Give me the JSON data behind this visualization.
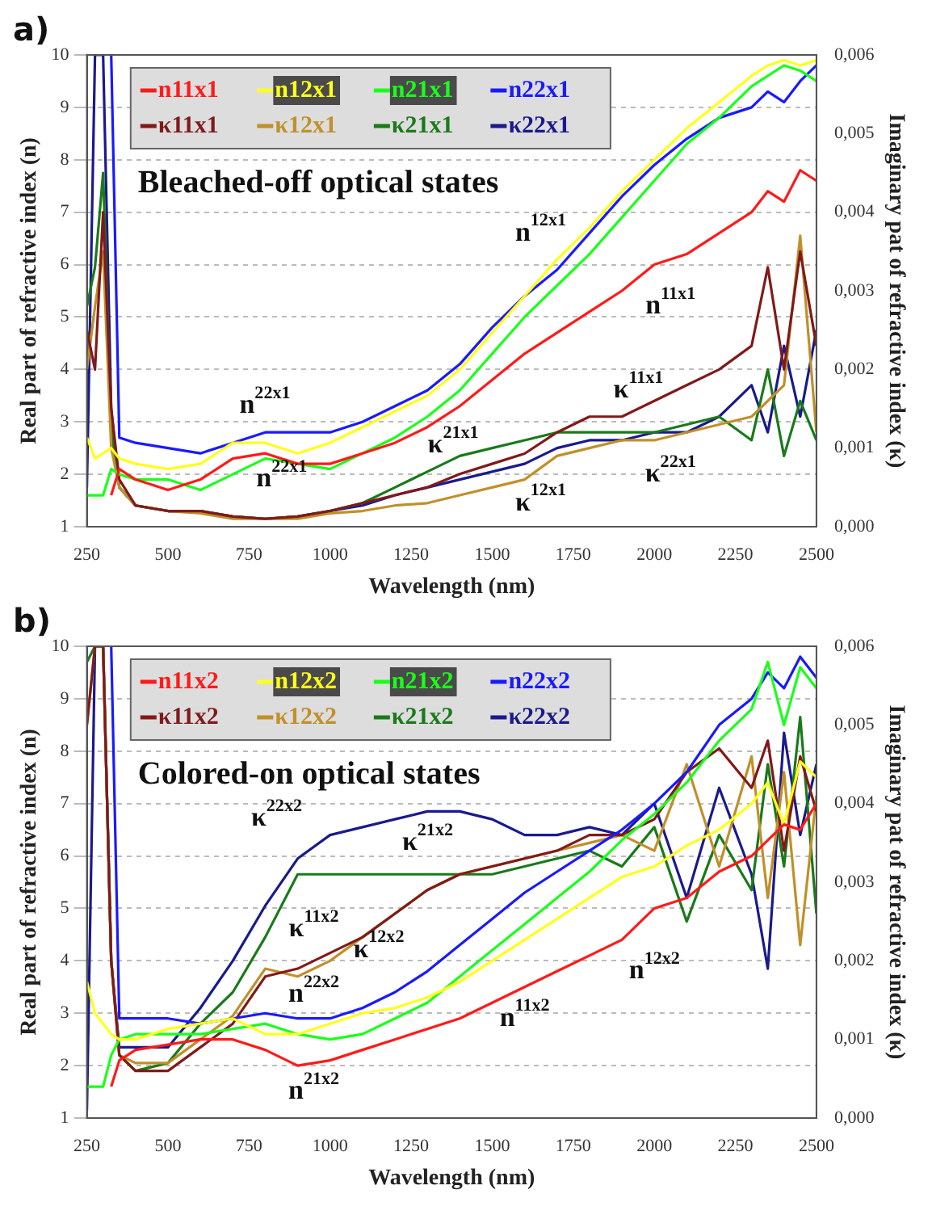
{
  "chart_data": [
    {
      "type": "line",
      "title": "a)",
      "xlabel": "Wavelength (nm)",
      "ylabel": "Real part of refractive index (n)",
      "y2label": "Imaginary pat of refractive index (κ)",
      "legend": "top left",
      "grid": "y",
      "marker": "none",
      "line_style": "solid",
      "xlim": [
        250,
        2500
      ],
      "xticks": [
        250,
        500,
        750,
        1000,
        1250,
        1500,
        1750,
        2000,
        2250,
        2500
      ],
      "ylim": [
        1,
        10
      ],
      "yticks": [
        1,
        2,
        3,
        4,
        5,
        6,
        7,
        8,
        9,
        10
      ],
      "y2lim": [
        0,
        0.006
      ],
      "y2ticks": [
        {
          "value": 0,
          "label": "0,000"
        },
        {
          "value": 0.001,
          "label": "0,001"
        },
        {
          "value": 0.002,
          "label": "0,002"
        },
        {
          "value": 0.003,
          "label": "0,003"
        },
        {
          "value": 0.004,
          "label": "0,004"
        },
        {
          "value": 0.005,
          "label": "0,005"
        },
        {
          "value": 0.006,
          "label": "0,006"
        }
      ],
      "x": [
        250,
        275,
        300,
        325,
        350,
        400,
        500,
        600,
        700,
        800,
        900,
        1000,
        1100,
        1200,
        1300,
        1400,
        1500,
        1600,
        1700,
        1800,
        1900,
        2000,
        2100,
        2200,
        2300,
        2350,
        2400,
        2450,
        2500
      ],
      "series": [
        {
          "name": "n11x1",
          "color": "#ff1a1a",
          "values": [
            null,
            null,
            null,
            1.6,
            2.1,
            1.9,
            1.7,
            1.9,
            2.3,
            2.4,
            2.2,
            2.2,
            2.4,
            2.6,
            2.9,
            3.3,
            3.8,
            4.3,
            4.7,
            5.1,
            5.5,
            6.0,
            6.2,
            6.6,
            7.0,
            7.4,
            7.2,
            7.8,
            7.6
          ]
        },
        {
          "name": "n12x1",
          "color": "#ffff1a",
          "values": [
            2.7,
            2.3,
            2.4,
            2.5,
            2.3,
            2.2,
            2.1,
            2.2,
            2.6,
            2.6,
            2.4,
            2.6,
            2.9,
            3.2,
            3.5,
            4.0,
            4.7,
            5.4,
            6.1,
            6.7,
            7.4,
            8.0,
            8.6,
            9.1,
            9.6,
            9.8,
            9.9,
            9.8,
            9.9
          ]
        },
        {
          "name": "n21x1",
          "color": "#1aff1a",
          "values": [
            1.6,
            1.6,
            1.6,
            2.1,
            2.0,
            1.9,
            1.9,
            1.7,
            2.0,
            2.3,
            2.2,
            2.1,
            2.4,
            2.7,
            3.1,
            3.6,
            4.3,
            5.0,
            5.6,
            6.2,
            6.9,
            7.6,
            8.3,
            8.8,
            9.4,
            9.6,
            9.8,
            9.7,
            9.5
          ]
        },
        {
          "name": "n22x1",
          "color": "#1a1aff",
          "values": [
            null,
            null,
            null,
            10,
            2.7,
            2.6,
            2.5,
            2.4,
            2.6,
            2.8,
            2.8,
            2.8,
            3.0,
            3.3,
            3.6,
            4.1,
            4.8,
            5.4,
            5.9,
            6.6,
            7.3,
            7.9,
            8.4,
            8.8,
            9.0,
            9.3,
            9.1,
            9.5,
            9.8
          ]
        },
        {
          "name": "κ11x1",
          "color": "#801a1a",
          "axis": "y2",
          "values": [
            0.0025,
            0.002,
            0.004,
            0.0015,
            0.0006,
            0.00027,
            0.0002,
            0.0002,
            0.00013,
            0.0001,
            0.00013,
            0.0002,
            0.0003,
            0.0004,
            0.0005,
            0.00067,
            0.0008,
            0.00093,
            0.0012,
            0.0014,
            0.0014,
            0.0016,
            0.0018,
            0.002,
            0.0023,
            0.0033,
            0.002,
            0.0035,
            0.0023
          ]
        },
        {
          "name": "κ12x1",
          "color": "#c0902a",
          "axis": "y2",
          "values": [
            0.002,
            0.0028,
            0.0035,
            0.001,
            0.0005,
            0.00027,
            0.0002,
            0.00017,
            0.0001,
            0.0001,
            0.0001,
            0.00017,
            0.0002,
            0.00027,
            0.0003,
            0.0004,
            0.0005,
            0.0006,
            0.0009,
            0.001,
            0.0011,
            0.0011,
            0.0012,
            0.0013,
            0.0014,
            0.0016,
            0.0018,
            0.0037,
            0.0012
          ]
        },
        {
          "name": "κ21x1",
          "color": "#1a7a1a",
          "axis": "y2",
          "values": [
            0.0028,
            0.0033,
            0.0045,
            0.0012,
            0.0005,
            0.00027,
            0.0002,
            0.0002,
            0.00013,
            0.0001,
            0.00013,
            0.0002,
            0.0003,
            0.0005,
            0.0007,
            0.0009,
            0.001,
            0.0011,
            0.0012,
            0.0012,
            0.0012,
            0.0012,
            0.0013,
            0.0014,
            0.0011,
            0.002,
            0.0009,
            0.0016,
            0.0011
          ]
        },
        {
          "name": "κ22x1",
          "color": "#1a1a8c",
          "axis": "y2",
          "values": [
            0.0005,
            0.006,
            0.006,
            0.0015,
            0.0005,
            0.00027,
            0.0002,
            0.0002,
            0.00013,
            0.0001,
            0.00013,
            0.0002,
            0.00027,
            0.0004,
            0.0005,
            0.0006,
            0.0007,
            0.0008,
            0.001,
            0.0011,
            0.0011,
            0.0012,
            0.0012,
            0.0014,
            0.0018,
            0.0012,
            0.0023,
            0.0014,
            0.0025
          ]
        }
      ],
      "annotations": [
        "Bleached-off optical states",
        "n$^{12x1}$",
        "n$^{11x1}$",
        "n$^{22x1}$",
        "n$^{22x1}$",
        "κ$^{11x1}$",
        "κ$^{21x1}$",
        "κ$^{12x1}$",
        "κ$^{22x1}$"
      ]
    },
    {
      "type": "line",
      "title": "b)",
      "xlabel": "Wavelength (nm)",
      "ylabel": "Real part of refractive index (n)",
      "y2label": "Imaginary pat of refractive index (κ)",
      "legend": "top left",
      "grid": "y",
      "marker": "none",
      "line_style": "solid",
      "xlim": [
        250,
        2500
      ],
      "xticks": [
        250,
        500,
        750,
        1000,
        1250,
        1500,
        1750,
        2000,
        2250,
        2500
      ],
      "ylim": [
        1,
        10
      ],
      "yticks": [
        1,
        2,
        3,
        4,
        5,
        6,
        7,
        8,
        9,
        10
      ],
      "y2lim": [
        0,
        0.006
      ],
      "y2ticks": [
        {
          "value": 0,
          "label": "0,000"
        },
        {
          "value": 0.001,
          "label": "0,001"
        },
        {
          "value": 0.002,
          "label": "0,002"
        },
        {
          "value": 0.003,
          "label": "0,003"
        },
        {
          "value": 0.004,
          "label": "0,004"
        },
        {
          "value": 0.005,
          "label": "0,005"
        },
        {
          "value": 0.006,
          "label": "0,006"
        }
      ],
      "x": [
        250,
        275,
        300,
        325,
        350,
        400,
        500,
        600,
        700,
        800,
        900,
        1000,
        1100,
        1200,
        1300,
        1400,
        1500,
        1600,
        1700,
        1800,
        1900,
        2000,
        2100,
        2200,
        2300,
        2350,
        2400,
        2450,
        2500
      ],
      "series": [
        {
          "name": "n11x2",
          "color": "#ff1a1a",
          "values": [
            null,
            null,
            null,
            1.6,
            2.1,
            2.3,
            2.4,
            2.5,
            2.5,
            2.3,
            2.0,
            2.1,
            2.3,
            2.5,
            2.7,
            2.9,
            3.2,
            3.5,
            3.8,
            4.1,
            4.4,
            5.0,
            5.2,
            5.7,
            6.0,
            6.3,
            6.6,
            6.5,
            7.0
          ]
        },
        {
          "name": "n12x2",
          "color": "#ffff1a",
          "values": [
            3.6,
            3.0,
            2.8,
            2.6,
            2.5,
            2.5,
            2.7,
            2.8,
            2.9,
            2.6,
            2.6,
            2.8,
            3.0,
            3.1,
            3.3,
            3.6,
            4.0,
            4.4,
            4.8,
            5.2,
            5.6,
            5.8,
            6.2,
            6.5,
            7.0,
            7.4,
            6.6,
            7.8,
            7.5
          ]
        },
        {
          "name": "n21x2",
          "color": "#1aff1a",
          "values": [
            1.6,
            1.6,
            1.6,
            2.2,
            2.5,
            2.6,
            2.6,
            2.6,
            2.7,
            2.8,
            2.6,
            2.5,
            2.6,
            2.9,
            3.2,
            3.7,
            4.2,
            4.7,
            5.2,
            5.7,
            6.3,
            6.8,
            7.4,
            8.2,
            8.8,
            9.7,
            8.5,
            9.6,
            9.2
          ]
        },
        {
          "name": "n22x2",
          "color": "#1a1aff",
          "values": [
            null,
            null,
            null,
            10,
            2.9,
            2.9,
            2.9,
            2.8,
            2.9,
            3.0,
            2.9,
            2.9,
            3.1,
            3.4,
            3.8,
            4.3,
            4.8,
            5.3,
            5.7,
            6.1,
            6.5,
            7.0,
            7.6,
            8.5,
            9.0,
            9.5,
            9.2,
            9.8,
            9.4
          ]
        },
        {
          "name": "κ11x2",
          "color": "#801a1a",
          "axis": "y2",
          "values": [
            0.005,
            0.006,
            0.006,
            0.002,
            0.0008,
            0.0006,
            0.0006,
            0.0009,
            0.0012,
            0.0018,
            0.0019,
            0.0021,
            0.0023,
            0.0026,
            0.0029,
            0.0031,
            0.0032,
            0.0033,
            0.0034,
            0.0036,
            0.0036,
            0.0038,
            0.0044,
            0.0047,
            0.0042,
            0.0048,
            0.0034,
            0.0046,
            0.0039
          ]
        },
        {
          "name": "κ12x2",
          "color": "#c0902a",
          "axis": "y2",
          "values": [
            0.005,
            0.006,
            0.006,
            0.002,
            0.0008,
            0.0007,
            0.0007,
            0.001,
            0.0013,
            0.0019,
            0.0018,
            0.002,
            0.0023,
            0.0026,
            0.0029,
            0.0031,
            0.0032,
            0.0033,
            0.0034,
            0.0035,
            0.0036,
            0.0034,
            0.0045,
            0.0032,
            0.0046,
            0.0028,
            0.0044,
            0.0022,
            0.0041
          ]
        },
        {
          "name": "κ21x2",
          "color": "#1a7a1a",
          "axis": "y2",
          "values": [
            0.0058,
            0.006,
            0.006,
            0.002,
            0.0008,
            0.0006,
            0.0007,
            0.0012,
            0.0016,
            0.0023,
            0.0031,
            0.0031,
            0.0031,
            0.0031,
            0.0031,
            0.0031,
            0.0031,
            0.0032,
            0.0033,
            0.0034,
            0.0032,
            0.0037,
            0.0025,
            0.0036,
            0.0029,
            0.0045,
            0.0032,
            0.0051,
            0.0026
          ]
        },
        {
          "name": "κ22x2",
          "color": "#1a1a8c",
          "axis": "y2",
          "values": [
            0.0001,
            0.006,
            0.006,
            0.002,
            0.0009,
            0.0009,
            0.0009,
            0.0014,
            0.002,
            0.0027,
            0.0033,
            0.0036,
            0.0037,
            0.0038,
            0.0039,
            0.0039,
            0.0038,
            0.0036,
            0.0036,
            0.0037,
            0.0036,
            0.004,
            0.0028,
            0.0042,
            0.0031,
            0.0019,
            0.0049,
            0.0036,
            0.0045
          ]
        }
      ],
      "annotations": [
        "Colored-on optical states",
        "κ$^{22x2}$",
        "κ$^{21x2}$",
        "κ$^{11x2}$",
        "κ$^{12x2}$",
        "n$^{22x2}$",
        "n$^{21x2}$",
        "n$^{11x2}$",
        "n$^{12x2}$"
      ]
    }
  ]
}
